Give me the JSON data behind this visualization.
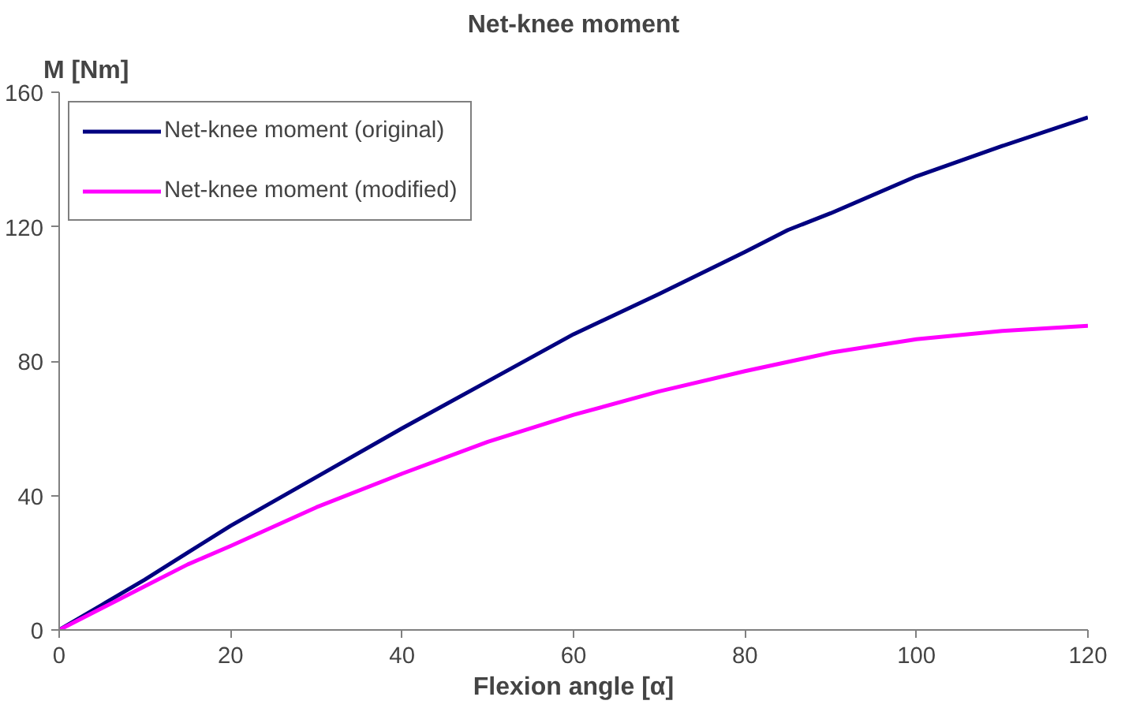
{
  "chart_data": {
    "type": "line",
    "title": "Net-knee moment",
    "xlabel": "Flexion angle [α]",
    "ylabel": "M [Nm]",
    "xlim": [
      0,
      120
    ],
    "ylim": [
      0,
      160
    ],
    "xticks": [
      0,
      20,
      40,
      60,
      80,
      100,
      120
    ],
    "yticks": [
      0,
      40,
      80,
      120,
      160
    ],
    "grid": false,
    "legend": "top left",
    "line_style": "solid",
    "marker": "none",
    "series": [
      {
        "name": "Net-knee moment (original)",
        "color": "#000080",
        "x": [
          0,
          5,
          10,
          15,
          20,
          30,
          40,
          50,
          60,
          70,
          80,
          85,
          90,
          100,
          110,
          120
        ],
        "values": [
          0,
          7.5,
          15,
          23,
          31,
          45.5,
          60,
          74,
          88,
          100,
          112.5,
          119,
          124,
          135,
          144,
          152.5
        ]
      },
      {
        "name": "Net-knee moment (modified)",
        "color": "#ff00ff",
        "x": [
          0,
          5,
          10,
          15,
          20,
          30,
          40,
          50,
          60,
          70,
          80,
          90,
          100,
          110,
          120
        ],
        "values": [
          0,
          6.5,
          13,
          19.5,
          25,
          36.5,
          46.5,
          56,
          64,
          71,
          77,
          82.5,
          86.5,
          89,
          90.5
        ]
      }
    ]
  }
}
